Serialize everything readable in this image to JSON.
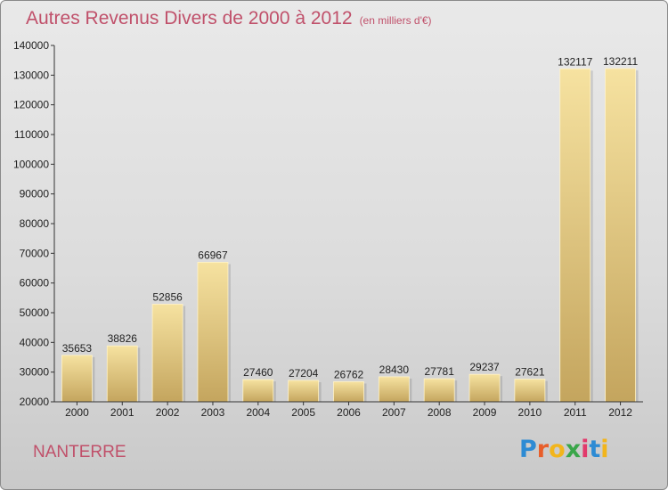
{
  "title": "Autres Revenus Divers de 2000 à 2012",
  "subtitle": "(en milliers d'€)",
  "commune": "NANTERRE",
  "brand": {
    "letters": [
      "P",
      "r",
      "o",
      "x",
      "i",
      "t",
      "i"
    ],
    "colors": [
      "#2d8bd4",
      "#e85e2a",
      "#f2b51c",
      "#3aa64a",
      "#e23a6c",
      "#2d8bd4",
      "#f2b51c"
    ]
  },
  "colors": {
    "bar_light": "#f6e2a0",
    "bar_dark": "#c4a55e",
    "title": "#c0506a"
  },
  "chart_data": {
    "type": "bar",
    "title": "Autres Revenus Divers de 2000 à 2012",
    "categories": [
      "2000",
      "2001",
      "2002",
      "2003",
      "2004",
      "2005",
      "2006",
      "2007",
      "2008",
      "2009",
      "2010",
      "2011",
      "2012"
    ],
    "values": [
      35653,
      38826,
      52856,
      66967,
      27460,
      27204,
      26762,
      28430,
      27781,
      29237,
      27621,
      132117,
      132211
    ],
    "ylim": [
      20000,
      140000
    ],
    "yticks": [
      20000,
      30000,
      40000,
      50000,
      60000,
      70000,
      80000,
      90000,
      100000,
      110000,
      120000,
      130000,
      140000
    ],
    "grid": false,
    "data_labels": true
  }
}
